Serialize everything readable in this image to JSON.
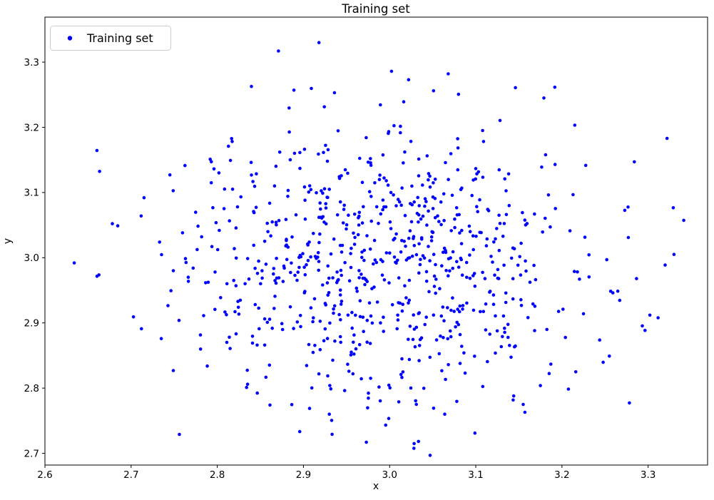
{
  "figure": {
    "background_color": "#ffffff",
    "axes_edge_color": "#000000",
    "text_color": "#000000"
  },
  "legend": {
    "label": "Training set",
    "marker_color": "#0000ff",
    "border_color": "#cccccc",
    "background_color": "#ffffff",
    "position": "upper left"
  },
  "chart_data": {
    "type": "scatter",
    "title": "Training set",
    "xlabel": "x",
    "ylabel": "y",
    "legend": [
      "Training set"
    ],
    "legend_position": "upper left",
    "grid": false,
    "marker": {
      "shape": "dot",
      "color": "#0000ff",
      "radius_px": 2.3
    },
    "xlim": [
      2.6,
      3.369
    ],
    "ylim": [
      2.682,
      3.369
    ],
    "xticks": [
      2.6,
      2.7,
      2.8,
      2.9,
      3.0,
      3.1,
      3.2,
      3.3
    ],
    "yticks": [
      2.7,
      2.8,
      2.9,
      3.0,
      3.1,
      3.2,
      3.3
    ],
    "distribution": {
      "kind": "gaussian",
      "n_points": 800,
      "mean": [
        2.99,
        3.0
      ],
      "std": [
        0.115,
        0.105
      ],
      "seed": 20240613
    },
    "anchor_points": [
      [
        2.634,
        2.992
      ],
      [
        2.715,
        3.092
      ],
      [
        2.712,
        2.891
      ],
      [
        2.733,
        3.024
      ],
      [
        2.745,
        3.127
      ],
      [
        2.749,
        2.827
      ],
      [
        2.756,
        2.729
      ],
      [
        2.772,
        2.984
      ],
      [
        2.793,
        3.115
      ],
      [
        2.813,
        3.171
      ],
      [
        2.834,
        2.801
      ],
      [
        2.814,
        2.878
      ],
      [
        2.824,
        2.933
      ],
      [
        2.855,
        2.866
      ],
      [
        2.871,
        3.317
      ],
      [
        2.889,
        3.257
      ],
      [
        2.918,
        3.33
      ],
      [
        2.936,
        3.253
      ],
      [
        2.93,
        2.76
      ],
      [
        2.973,
        2.717
      ],
      [
        3.022,
        3.273
      ],
      [
        3.051,
        3.256
      ],
      [
        3.064,
        2.76
      ],
      [
        3.068,
        3.282
      ],
      [
        3.099,
        2.731
      ],
      [
        3.144,
        2.788
      ],
      [
        3.155,
        2.775
      ],
      [
        3.157,
        2.763
      ],
      [
        3.179,
        3.245
      ],
      [
        3.192,
        3.143
      ],
      [
        3.225,
        2.914
      ],
      [
        3.252,
        2.997
      ],
      [
        3.255,
        2.849
      ],
      [
        3.277,
        3.031
      ],
      [
        3.284,
        3.147
      ],
      [
        3.302,
        2.912
      ],
      [
        3.322,
        3.183
      ],
      [
        3.33,
        3.005
      ]
    ]
  }
}
